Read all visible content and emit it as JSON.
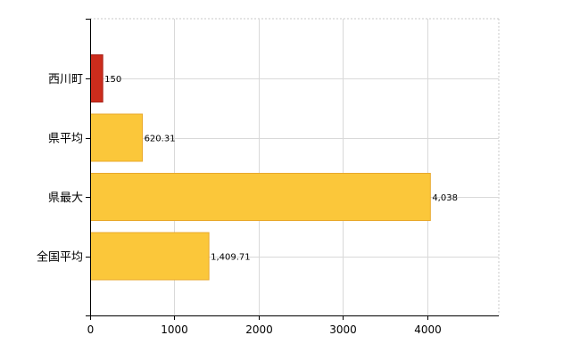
{
  "chart_data": {
    "type": "bar",
    "orientation": "horizontal",
    "categories": [
      "西川町",
      "県平均",
      "県最大",
      "全国平均"
    ],
    "values": [
      150,
      620.31,
      4038,
      1409.71
    ],
    "value_labels": [
      "150",
      "620.31",
      "4,038",
      "1,409.71"
    ],
    "bar_colors": [
      "#cc2c1c",
      "#fbc73a",
      "#fbc73a",
      "#fbc73a"
    ],
    "bar_edge_colors": [
      "#a8231a",
      "#e8a82c",
      "#e8a82c",
      "#e8a82c"
    ],
    "xlim": [
      0,
      4850
    ],
    "x_ticks": [
      0,
      1000,
      2000,
      3000,
      4000
    ],
    "x_tick_labels": [
      "0",
      "1000",
      "2000",
      "3000",
      "4000"
    ],
    "title": "",
    "xlabel": "",
    "ylabel": "",
    "grid": true,
    "legend": "none"
  }
}
